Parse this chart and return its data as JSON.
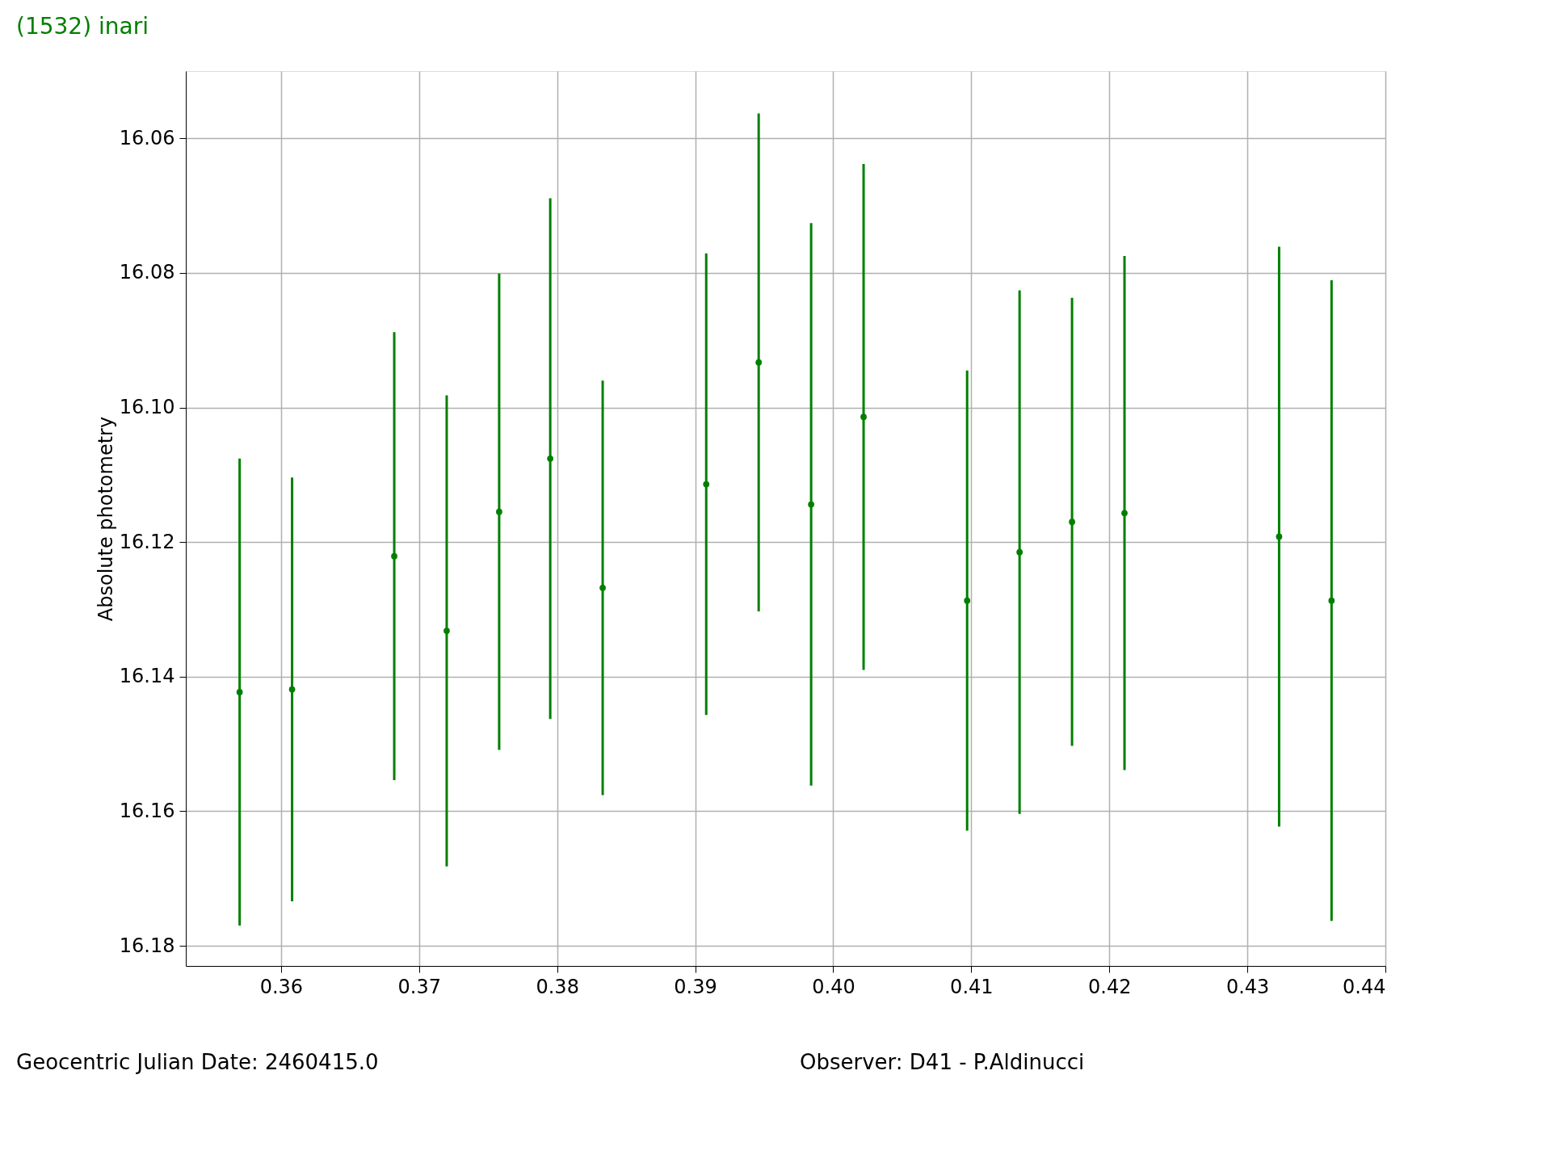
{
  "chart_data": {
    "type": "scatter",
    "title": "(1532) inari",
    "ylabel": "Absolute photometry",
    "x": [
      0.357,
      0.3608,
      0.3682,
      0.372,
      0.3758,
      0.3795,
      0.3833,
      0.3908,
      0.3946,
      0.3984,
      0.4022,
      0.4097,
      0.4135,
      0.4173,
      0.4211,
      0.4323,
      0.4361
    ],
    "series": [
      {
        "color": "#008000",
        "values": [
          16.1423,
          16.1419,
          16.1221,
          16.1332,
          16.1155,
          16.1076,
          16.1268,
          16.1114,
          16.0933,
          16.1144,
          16.1014,
          16.1287,
          16.1215,
          16.117,
          16.1157,
          16.1192,
          16.1287
        ],
        "errors": [
          0.0347,
          0.0315,
          0.0333,
          0.035,
          0.0354,
          0.0387,
          0.0308,
          0.0343,
          0.037,
          0.0418,
          0.0376,
          0.0342,
          0.0389,
          0.0333,
          0.0382,
          0.0431,
          0.0476
        ]
      }
    ],
    "xlim": [
      0.3531,
      0.44
    ],
    "xticks": [
      0.36,
      0.37,
      0.38,
      0.39,
      {
        "value": 0.4,
        "label": "0.40"
      },
      0.41,
      0.42,
      0.43,
      0.44
    ],
    "ylim": [
      16.183,
      16.05
    ],
    "yticks": [
      16.06,
      16.08,
      {
        "value": 16.1,
        "label": "16.10"
      },
      16.12,
      16.14,
      16.16,
      16.18
    ],
    "grid": true,
    "marker": "circle",
    "annotations": [
      "Geocentric Julian Date: 2460415.0",
      "Observer: D41 - P.Aldinucci"
    ]
  }
}
